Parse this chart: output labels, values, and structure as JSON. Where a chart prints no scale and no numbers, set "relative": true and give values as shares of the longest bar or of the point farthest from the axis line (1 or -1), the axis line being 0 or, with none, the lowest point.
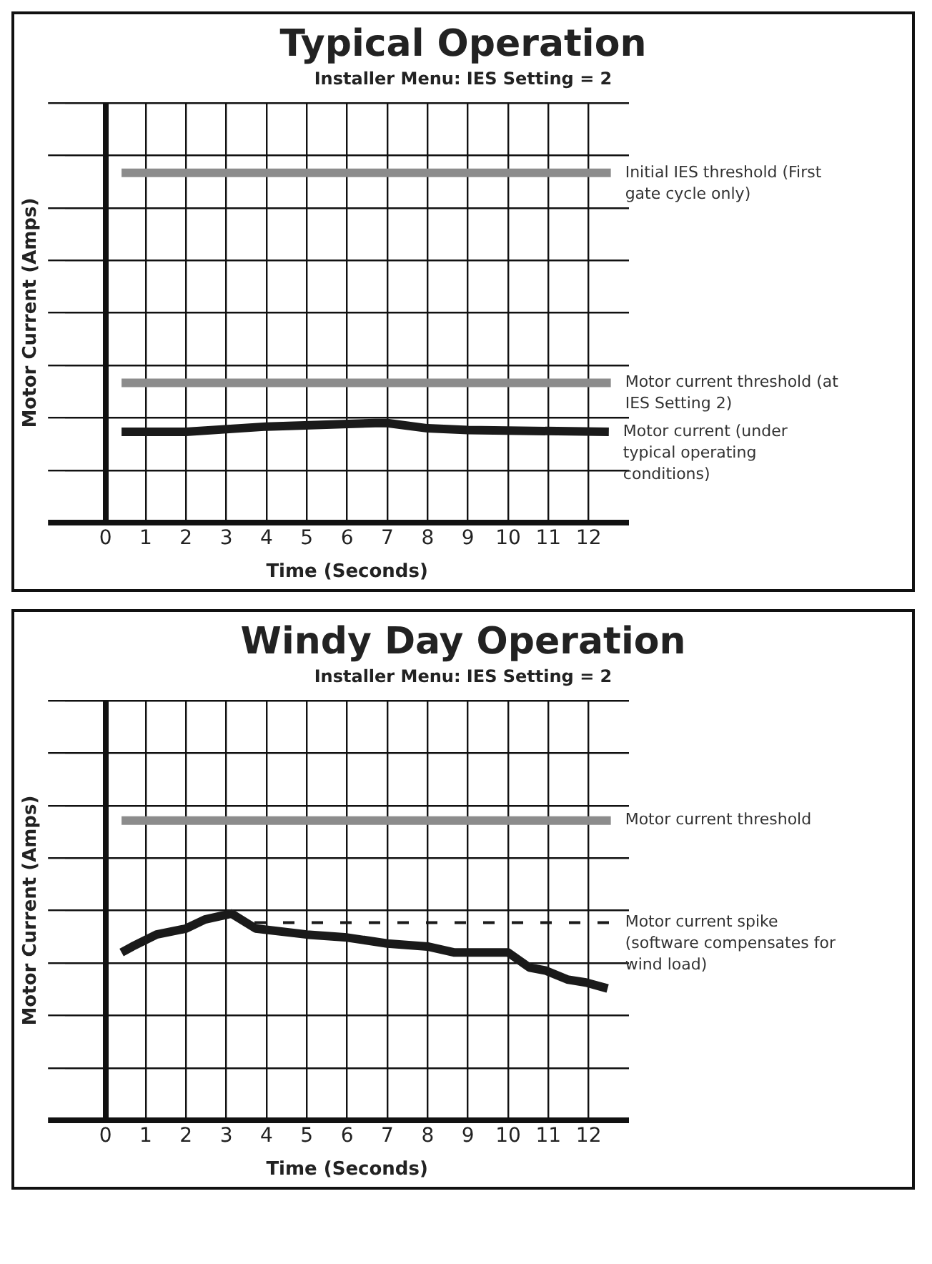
{
  "chart_data": [
    {
      "type": "line",
      "title": "Typical Operation",
      "subtitle": "Installer Menu: IES Setting = 2",
      "xlabel": "Time (Seconds)",
      "ylabel": "Motor Current (Amps)",
      "relative": true,
      "xlim": [
        -1,
        13
      ],
      "xticks": [
        0,
        1,
        2,
        3,
        4,
        5,
        6,
        7,
        8,
        9,
        10,
        11,
        12
      ],
      "grid": true,
      "marker": "none",
      "series": [
        {
          "name": "Initial IES threshold (First gate cycle only)",
          "color": "#8c8c8c",
          "x": [
            0.4,
            12.55
          ],
          "values": [
            1,
            1
          ]
        },
        {
          "name": "Motor current threshold (at IES Setting 2)",
          "color": "#8c8c8c",
          "x": [
            0.4,
            12.55
          ],
          "values": [
            0.4,
            0.4
          ]
        },
        {
          "name": "Motor current (under typical operating conditions)",
          "color": "#1a1a1a",
          "x": [
            0.4,
            2,
            4,
            6.7,
            7,
            8,
            9,
            12.5
          ],
          "values": [
            0.26,
            0.26,
            0.275,
            0.285,
            0.285,
            0.27,
            0.265,
            0.26
          ]
        }
      ]
    },
    {
      "type": "line",
      "title": "Windy Day Operation",
      "subtitle": "Installer Menu: IES Setting = 2",
      "xlabel": "Time (Seconds)",
      "ylabel": "Motor Current (Amps)",
      "relative": true,
      "xlim": [
        -1,
        13
      ],
      "xticks": [
        0,
        1,
        2,
        3,
        4,
        5,
        6,
        7,
        8,
        9,
        10,
        11,
        12
      ],
      "grid": true,
      "marker": "none",
      "series": [
        {
          "name": "Motor current threshold",
          "color": "#8c8c8c",
          "x": [
            0.4,
            12.55
          ],
          "values": [
            1,
            1
          ]
        },
        {
          "name": "Motor current spike (software compensates for wind load)",
          "color": "#1a1a1a",
          "line_style": "dashed",
          "x": [
            3.7,
            12.55
          ],
          "values": [
            0.66,
            0.66
          ]
        },
        {
          "color": "#1a1a1a",
          "x": [
            0.4,
            0.67,
            1.27,
            2,
            2.47,
            3.13,
            3.73,
            5,
            6,
            7,
            8,
            8.67,
            10,
            10.53,
            10.93,
            11.47,
            11.93,
            12.47
          ],
          "values": [
            0.56,
            0.58,
            0.62,
            0.64,
            0.67,
            0.69,
            0.64,
            0.62,
            0.61,
            0.59,
            0.58,
            0.56,
            0.56,
            0.51,
            0.5,
            0.47,
            0.46,
            0.44
          ]
        }
      ]
    }
  ]
}
